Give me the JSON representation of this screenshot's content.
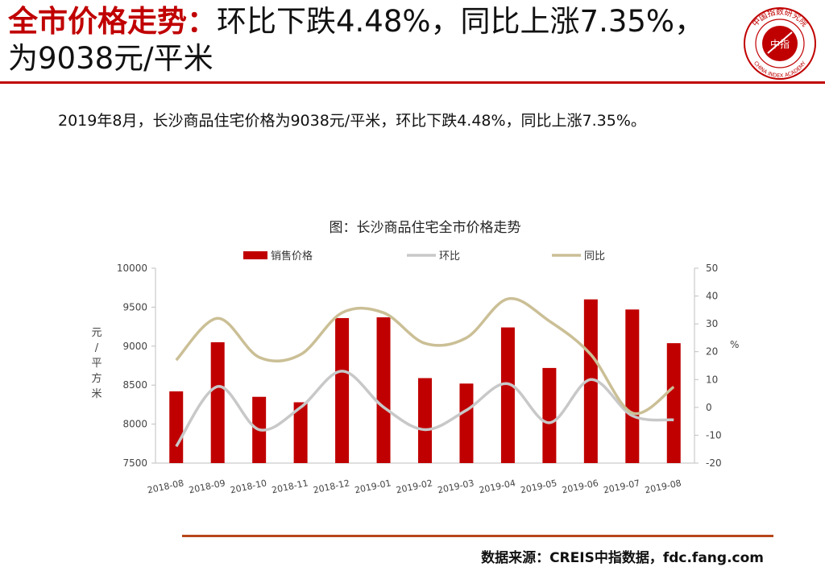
{
  "header": {
    "title_prefix": "全市价格走势：",
    "title_rest": "环比下跌4.48%，同比上涨7.35%，为9038元/平米"
  },
  "logo": {
    "ring_text": "中国指数研究院",
    "ring_text_en": "CHINA INDEX ACADEMY",
    "center_text": "中指",
    "color": "#c00000"
  },
  "summary": "2019年8月，长沙商品住宅价格为9038元/平米，环比下跌4.48%，同比上涨7.35%。",
  "source": "数据来源：CREIS中指数据，fdc.fang.com",
  "chart_data": {
    "type": "bar",
    "title": "图：长沙商品住宅全市价格走势",
    "categories": [
      "2018-08",
      "2018-09",
      "2018-10",
      "2018-11",
      "2018-12",
      "2019-01",
      "2019-02",
      "2019-03",
      "2019-04",
      "2019-05",
      "2019-06",
      "2019-07",
      "2019-08"
    ],
    "series": [
      {
        "name": "销售价格",
        "type": "bar",
        "axis": "left",
        "color": "#c00000",
        "values": [
          8420,
          9050,
          8350,
          8280,
          9360,
          9370,
          8590,
          8520,
          9240,
          8720,
          9600,
          9470,
          9038
        ]
      },
      {
        "name": "环比",
        "type": "line",
        "axis": "right",
        "color": "#c8c8c8",
        "values": [
          -14,
          7.5,
          -8,
          0,
          13,
          0.1,
          -8,
          -1,
          8.5,
          -5.5,
          10,
          -3,
          -4.48
        ]
      },
      {
        "name": "同比",
        "type": "line",
        "axis": "right",
        "color": "#cbbf96",
        "values": [
          17,
          32,
          18,
          19,
          34,
          34,
          23,
          25,
          39,
          31,
          19,
          -2,
          7.35
        ]
      }
    ],
    "left_axis": {
      "min": 7500,
      "max": 10000,
      "step": 500,
      "label": "元/平方米"
    },
    "right_axis": {
      "min": -20,
      "max": 50,
      "step": 10,
      "label": "%"
    },
    "grid": false,
    "legend_position": "top"
  }
}
